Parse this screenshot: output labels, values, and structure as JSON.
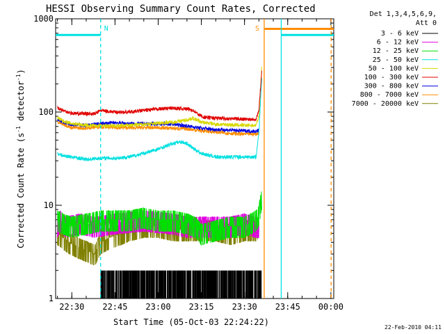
{
  "chart_data": {
    "type": "line",
    "title": "HESSI Observing Summary Count Rates, Corrected",
    "xlabel": "Start Time (05-Oct-03 22:24:22)",
    "ylabel_main": "Corrected Count Rate (s",
    "ylabel_sup1": "-1",
    "ylabel_mid": " detector",
    "ylabel_sup2": "-1",
    "ylabel_end": ")",
    "y_scale": "log",
    "ylim": [
      1,
      1000
    ],
    "y_ticks": [
      {
        "value": 1,
        "label": "1"
      },
      {
        "value": 10,
        "label": "10"
      },
      {
        "value": 100,
        "label": "100"
      },
      {
        "value": 1000,
        "label": "1000"
      }
    ],
    "xlim": [
      "22:24:22",
      "00:01"
    ],
    "x_ticks": [
      "22:30",
      "22:45",
      "23:00",
      "23:15",
      "23:30",
      "23:45",
      "00:00"
    ],
    "legend_header": [
      "Det 1,3,4,5,6,9,",
      "Att 0"
    ],
    "legend_placement": "top-right outside",
    "flag_lines": [
      {
        "time": "22:40:00",
        "style": "dashed",
        "color": "#00e0e0",
        "label": "N"
      },
      {
        "time": "23:36:50",
        "style": "solid",
        "color": "#ff8c00",
        "label": "S"
      },
      {
        "time": "23:42:45",
        "style": "solid",
        "color": "#00e0e0",
        "label": ""
      },
      {
        "time": "00:00:05",
        "style": "dashed",
        "color": "#ff8c00",
        "label": ""
      }
    ],
    "flag_bars": [
      {
        "start": "22:24:22",
        "end": "22:40:00",
        "value": 670,
        "color": "#00e0e0"
      },
      {
        "start": "23:37:00",
        "end": "00:01",
        "value": 780,
        "color": "#ff8c00"
      },
      {
        "start": "23:42:45",
        "end": "00:01",
        "value": 670,
        "color": "#00e0e0"
      }
    ],
    "series": [
      {
        "name": "3 - 6 keV",
        "color": "#000000",
        "times": [
          "22:40",
          "23:36"
        ],
        "values": [
          1,
          2
        ],
        "style": "spikes"
      },
      {
        "name": "6 - 12 keV",
        "color": "#e000e0",
        "times": [
          "22:25",
          "22:26",
          "22:28",
          "22:33",
          "22:38",
          "22:45",
          "22:55",
          "23:05",
          "23:10",
          "23:18",
          "23:25",
          "23:30",
          "23:34",
          "23:35"
        ],
        "values": [
          6,
          7,
          6,
          6.5,
          6,
          6.5,
          7,
          6.5,
          6,
          6,
          6,
          6.5,
          6,
          6
        ]
      },
      {
        "name": "12 - 25 keV",
        "color": "#00e000",
        "times": [
          "22:25",
          "22:27",
          "22:30",
          "22:35",
          "22:40",
          "22:45",
          "22:50",
          "22:55",
          "23:00",
          "23:05",
          "23:10",
          "23:13",
          "23:15",
          "23:20",
          "23:25",
          "23:30",
          "23:34",
          "23:35",
          "23:36"
        ],
        "values": [
          7,
          6.5,
          6,
          6.5,
          7,
          7,
          7,
          7.5,
          7,
          7,
          6.5,
          6,
          5,
          5.5,
          6,
          6,
          7,
          8,
          12
        ]
      },
      {
        "name": "25 - 50 keV",
        "color": "#00e0e0",
        "times": [
          "22:25",
          "22:27",
          "22:30",
          "22:35",
          "22:40",
          "22:45",
          "22:50",
          "22:55",
          "23:00",
          "23:05",
          "23:08",
          "23:10",
          "23:12",
          "23:15",
          "23:20",
          "23:25",
          "23:30",
          "23:34",
          "23:35",
          "23:36"
        ],
        "values": [
          36,
          34,
          33,
          31,
          32,
          32,
          33,
          36,
          40,
          46,
          48,
          46,
          41,
          36,
          33,
          33,
          33,
          33,
          60,
          240
        ]
      },
      {
        "name": "50 - 100 keV",
        "color": "#d8d800",
        "times": [
          "22:25",
          "22:27",
          "22:30",
          "22:35",
          "22:40",
          "22:45",
          "22:50",
          "22:55",
          "23:00",
          "23:05",
          "23:10",
          "23:12",
          "23:15",
          "23:20",
          "23:25",
          "23:30",
          "23:34",
          "23:35",
          "23:36"
        ],
        "values": [
          87,
          80,
          75,
          72,
          71,
          71,
          72,
          74,
          76,
          78,
          82,
          86,
          78,
          74,
          73,
          72,
          72,
          90,
          320
        ]
      },
      {
        "name": "100 - 300 keV",
        "color": "#e00000",
        "times": [
          "22:25",
          "22:27",
          "22:30",
          "22:35",
          "22:38",
          "22:40",
          "22:45",
          "22:50",
          "22:55",
          "23:00",
          "23:05",
          "23:10",
          "23:12",
          "23:14",
          "23:16",
          "23:20",
          "23:25",
          "23:30",
          "23:34",
          "23:35",
          "23:36"
        ],
        "values": [
          112,
          104,
          97,
          96,
          96,
          104,
          100,
          100,
          104,
          108,
          110,
          108,
          105,
          94,
          88,
          86,
          85,
          84,
          84,
          105,
          280
        ]
      },
      {
        "name": "300 - 800 keV",
        "color": "#0000e0",
        "times": [
          "22:25",
          "22:28",
          "22:30",
          "22:35",
          "22:40",
          "22:45",
          "22:50",
          "22:55",
          "23:00",
          "23:05",
          "23:10",
          "23:15",
          "23:20",
          "23:25",
          "23:30",
          "23:34",
          "23:35"
        ],
        "values": [
          83,
          76,
          74,
          72,
          75,
          77,
          75,
          75,
          75,
          74,
          71,
          67,
          65,
          64,
          63,
          62,
          64
        ]
      },
      {
        "name": "800 - 7000 keV",
        "color": "#ff8c00",
        "times": [
          "22:25",
          "22:28",
          "22:30",
          "22:35",
          "22:40",
          "22:45",
          "22:50",
          "22:55",
          "23:00",
          "23:05",
          "23:10",
          "23:15",
          "23:20",
          "23:25",
          "23:30",
          "23:34",
          "23:35"
        ],
        "values": [
          78,
          72,
          68,
          67,
          70,
          68,
          68,
          68,
          68,
          67,
          66,
          63,
          61,
          59,
          58,
          58,
          60
        ]
      },
      {
        "name": "7000 - 20000 keV",
        "color": "#808000",
        "times": [
          "22:25",
          "22:27",
          "22:29",
          "22:33",
          "22:38",
          "22:40",
          "22:43",
          "22:47",
          "22:50",
          "22:55",
          "23:00",
          "23:05",
          "23:10",
          "23:15",
          "23:20",
          "23:25",
          "23:30",
          "23:34",
          "23:35"
        ],
        "values": [
          5,
          4.5,
          4,
          3.5,
          3,
          4,
          4.5,
          5,
          5.5,
          6,
          6,
          5.5,
          5.5,
          5.5,
          5.5,
          5,
          5.5,
          5.5,
          6
        ]
      }
    ]
  },
  "stamp": "22-Feb-2010 04:11"
}
